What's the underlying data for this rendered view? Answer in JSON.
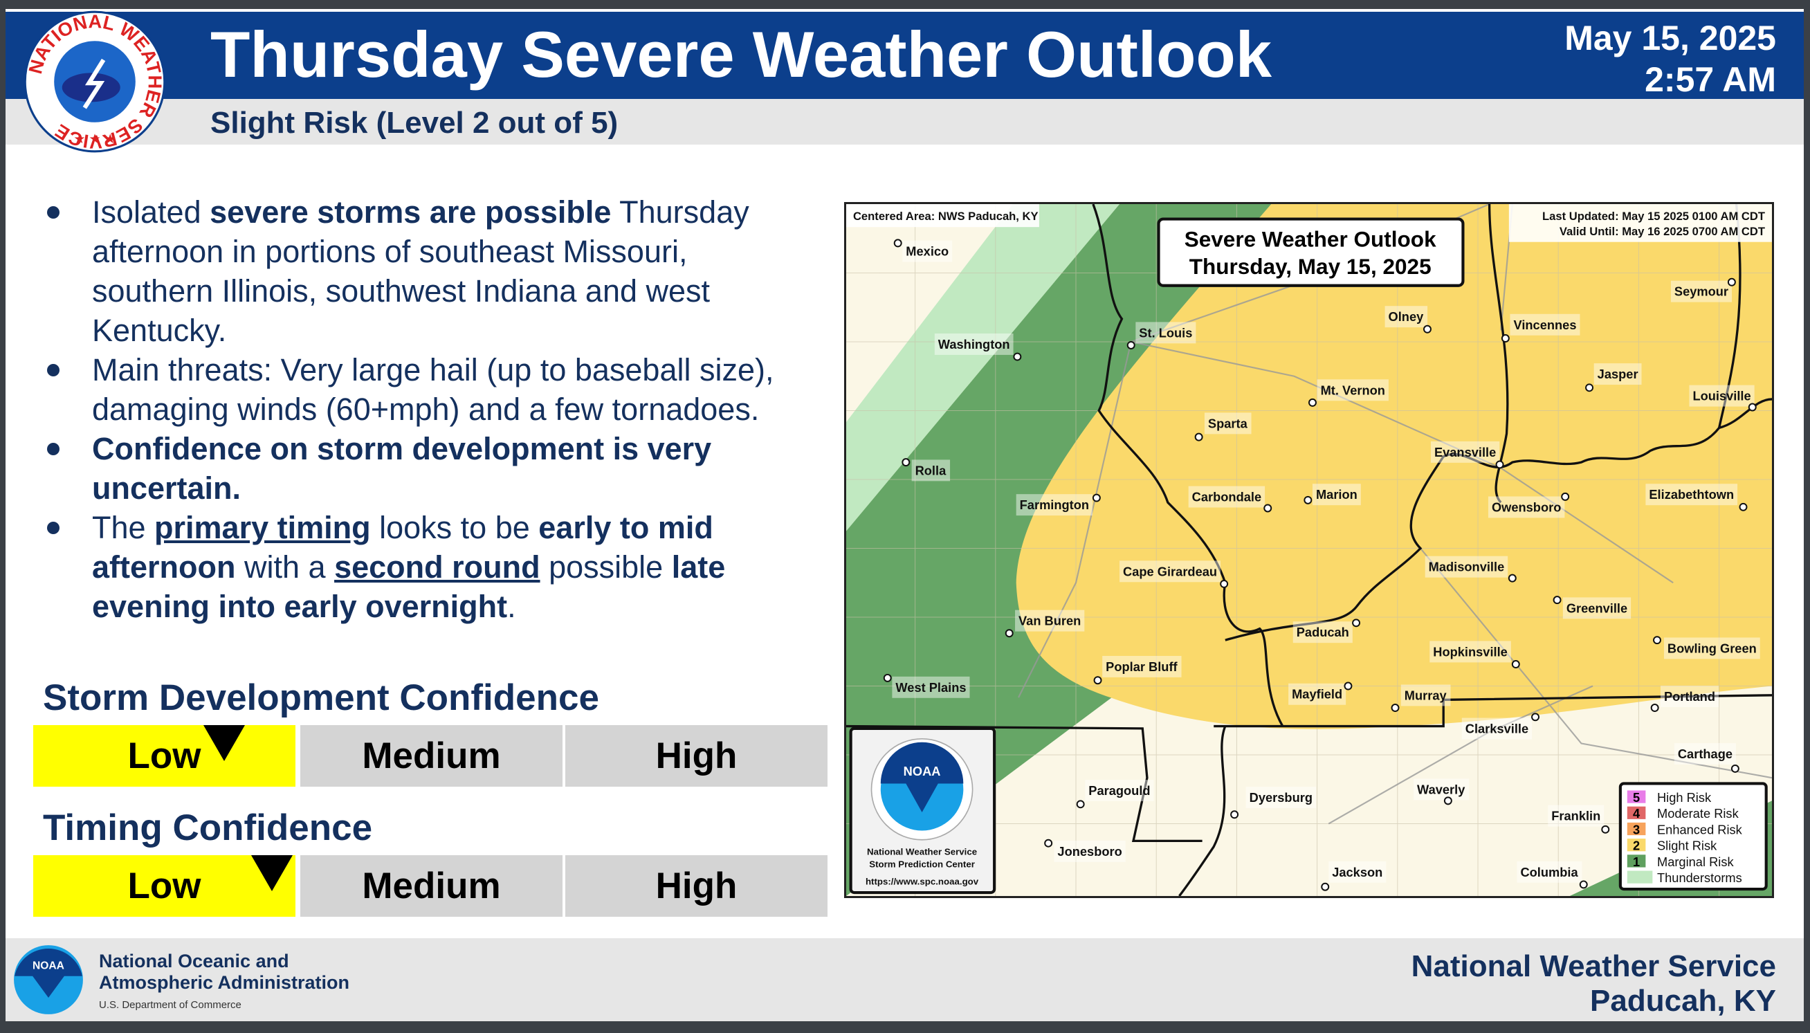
{
  "header": {
    "title": "Thursday Severe Weather Outlook",
    "date": "May 15, 2025",
    "time": "2:57 AM",
    "subtitle": "Slight Risk (Level 2 out of 5)",
    "logo_text": "NATIONAL WEATHER SERVICE"
  },
  "bullets": [
    [
      {
        "t": "Isolated "
      },
      {
        "t": "severe storms are possible",
        "b": true
      },
      {
        "t": " Thursday afternoon in portions of southeast Missouri, southern Illinois, southwest Indiana and west Kentucky."
      }
    ],
    [
      {
        "t": "Main threats: Very large hail (up to baseball size), damaging winds (60+mph) and a few tornadoes."
      }
    ],
    [
      {
        "t": "Confidence on storm development is very uncertain.",
        "b": true
      }
    ],
    [
      {
        "t": "The "
      },
      {
        "t": "primary timing",
        "b": true,
        "u": true
      },
      {
        "t": " looks to be "
      },
      {
        "t": "early to mid afternoon",
        "b": true
      },
      {
        "t": " with a "
      },
      {
        "t": "second round",
        "b": true,
        "u": true
      },
      {
        "t": " possible "
      },
      {
        "t": "late evening into early overnight",
        "b": true
      },
      {
        "t": "."
      }
    ]
  ],
  "confidence": [
    {
      "title": "Storm Development Confidence",
      "levels": [
        "Low",
        "Medium",
        "High"
      ],
      "selected": "Low",
      "marker_fraction": 0.24
    },
    {
      "title": "Timing Confidence",
      "levels": [
        "Low",
        "Medium",
        "High"
      ],
      "selected": "Low",
      "marker_fraction": 0.3
    }
  ],
  "map": {
    "centered": "Centered Area: NWS Paducah, KY",
    "title1": "Severe Weather Outlook",
    "title2": "Thursday, May 15, 2025",
    "updated": "Last Updated: May 15 2025 0100 AM CDT",
    "valid": "Valid Until: May 16 2025 0700 AM CDT",
    "noaa_box": {
      "l1": "National Weather Service",
      "l2": "Storm Prediction Center",
      "url": "https://www.spc.noaa.gov",
      "logo": "NOAA"
    },
    "colors": {
      "background": "#fbf7e6",
      "thunderstorms": "#c1e9c1",
      "marginal": "#66a666",
      "slight": "#fad96b"
    },
    "legend": [
      {
        "num": "5",
        "label": "High Risk",
        "color": "#e87de8"
      },
      {
        "num": "4",
        "label": "Moderate Risk",
        "color": "#e06666"
      },
      {
        "num": "3",
        "label": "Enhanced Risk",
        "color": "#f7a35c"
      },
      {
        "num": "2",
        "label": "Slight Risk",
        "color": "#fad96b"
      },
      {
        "num": "1",
        "label": "Marginal Risk",
        "color": "#5fa05f"
      },
      {
        "num": "",
        "label": "Thunderstorms",
        "color": "#c1e9c1"
      }
    ],
    "cities": [
      "Mexico",
      "Washington",
      "St. Louis",
      "Olney",
      "Vincennes",
      "Seymour",
      "Mt. Vernon",
      "Jasper",
      "Louisville",
      "Sparta",
      "Rolla",
      "Evansville",
      "Farmington",
      "Carbondale",
      "Marion",
      "Owensboro",
      "Elizabethtown",
      "Cape Girardeau",
      "Madisonville",
      "Greenville",
      "Van Buren",
      "Paducah",
      "Hopkinsville",
      "Bowling Green",
      "Poplar Bluff",
      "West Plains",
      "Mayfield",
      "Murray",
      "Portland",
      "Clarksville",
      "Carthage",
      "Paragould",
      "Dyersburg",
      "Waverly",
      "Franklin",
      "Jonesboro",
      "Jackson",
      "Columbia"
    ]
  },
  "footer": {
    "org1": "National Oceanic and",
    "org2": "Atmospheric Administration",
    "dept": "U.S. Department of Commerce",
    "right1": "National Weather Service",
    "right2": "Paducah, KY",
    "logo": "NOAA"
  }
}
